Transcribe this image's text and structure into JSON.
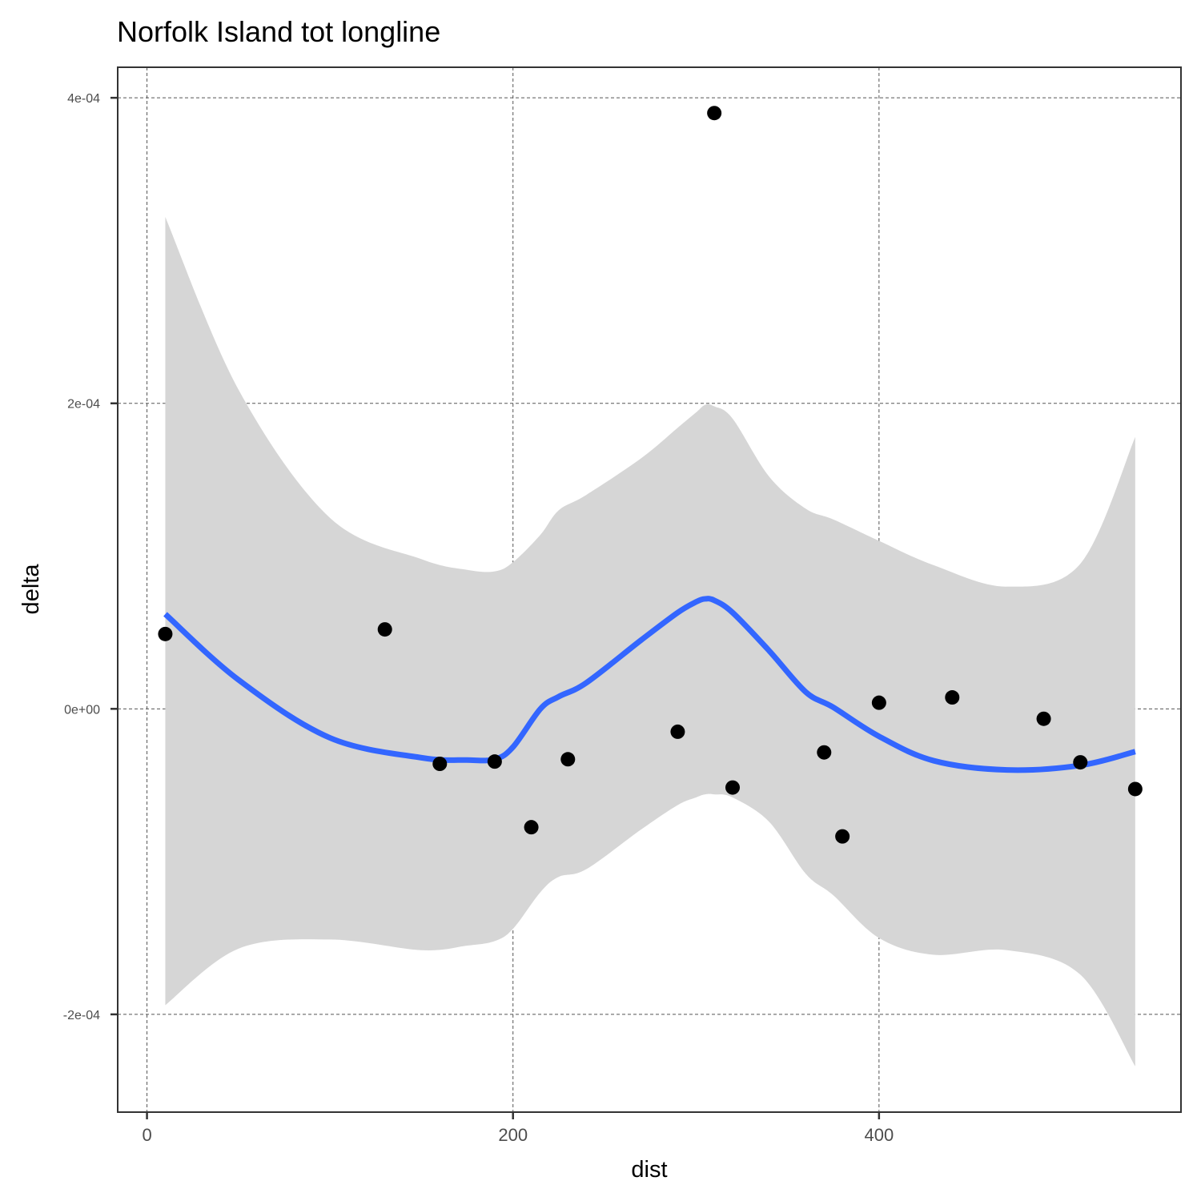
{
  "chart_data": {
    "type": "scatter",
    "title": "Norfolk Island tot longline",
    "xlabel": "dist",
    "ylabel": "delta",
    "xlim": [
      -16,
      565
    ],
    "ylim": [
      -0.000264,
      0.00042
    ],
    "xticks": [
      0,
      200,
      400
    ],
    "xtick_labels": [
      "0",
      "200",
      "400"
    ],
    "yticks": [
      -0.0002,
      0,
      0.0002,
      0.0004
    ],
    "ytick_labels": [
      "-2e-04",
      "0e+00",
      "2e-04",
      "4e-04"
    ],
    "grid": true,
    "points": {
      "x": [
        10,
        130,
        160,
        190,
        210,
        230,
        290,
        310,
        320,
        370,
        380,
        400,
        440,
        490,
        510,
        540
      ],
      "y": [
        4.9e-05,
        5.2e-05,
        -3.6e-05,
        -3.45e-05,
        -7.75e-05,
        -3.3e-05,
        -1.5e-05,
        0.00039,
        -5.15e-05,
        -2.85e-05,
        -8.35e-05,
        4e-06,
        7.5e-06,
        -6.5e-06,
        -3.5e-05,
        -5.25e-05
      ],
      "color": "#000000"
    },
    "smooth": {
      "color": "#3366ff",
      "band_color": "#d6d6d6",
      "x": [
        10,
        50,
        100,
        150,
        175,
        190,
        200,
        215,
        225,
        240,
        270,
        290,
        300,
        305,
        310,
        320,
        340,
        360,
        375,
        400,
        430,
        470,
        510,
        540
      ],
      "y": [
        6.2e-05,
        1.9e-05,
        -1.9e-05,
        -3.2e-05,
        -3.35e-05,
        -3.3e-05,
        -2.5e-05,
        0.0,
        8e-06,
        1.7e-05,
        4.5e-05,
        6.3e-05,
        7e-05,
        7.2e-05,
        7.1e-05,
        6.3e-05,
        3.8e-05,
        1.1e-05,
        1e-06,
        -1.8e-05,
        -3.4e-05,
        -4e-05,
        -3.7e-05,
        -2.8e-05
      ],
      "upper": [
        0.000322,
        0.000209,
        0.000125,
        9.8e-05,
        9.1e-05,
        9e-05,
        9.6e-05,
        0.000114,
        0.00013,
        0.00014,
        0.000164,
        0.000184,
        0.000194,
        0.000199,
        0.000198,
        0.00019,
        0.000152,
        0.000131,
        0.000124,
        0.00011,
        9.4e-05,
        8e-05,
        9.5e-05,
        0.000178
      ],
      "lower": [
        -0.000194,
        -0.000157,
        -0.000151,
        -0.000158,
        -0.000155,
        -0.000152,
        -0.000144,
        -0.00012,
        -0.00011,
        -0.000105,
        -7.9e-05,
        -6.3e-05,
        -5.8e-05,
        -5.6e-05,
        -5.6e-05,
        -5.8e-05,
        -7.4e-05,
        -0.000108,
        -0.000122,
        -0.00015,
        -0.000161,
        -0.000158,
        -0.000174,
        -0.000234
      ]
    }
  }
}
